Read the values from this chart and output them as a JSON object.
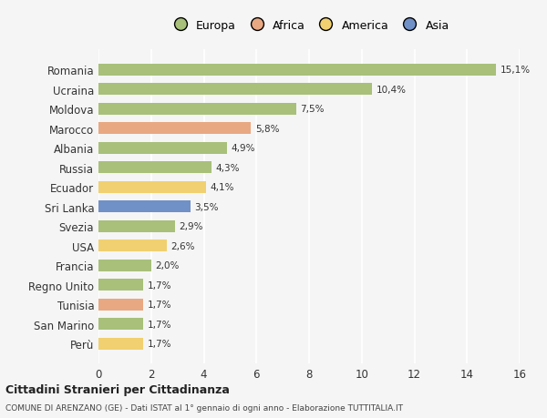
{
  "categories": [
    "Perù",
    "San Marino",
    "Tunisia",
    "Regno Unito",
    "Francia",
    "USA",
    "Svezia",
    "Sri Lanka",
    "Ecuador",
    "Russia",
    "Albania",
    "Marocco",
    "Moldova",
    "Ucraina",
    "Romania"
  ],
  "values": [
    1.7,
    1.7,
    1.7,
    1.7,
    2.0,
    2.6,
    2.9,
    3.5,
    4.1,
    4.3,
    4.9,
    5.8,
    7.5,
    10.4,
    15.1
  ],
  "labels": [
    "1,7%",
    "1,7%",
    "1,7%",
    "1,7%",
    "2,0%",
    "2,6%",
    "2,9%",
    "3,5%",
    "4,1%",
    "4,3%",
    "4,9%",
    "5,8%",
    "7,5%",
    "10,4%",
    "15,1%"
  ],
  "continents": [
    "America",
    "Europa",
    "Africa",
    "Europa",
    "Europa",
    "America",
    "Europa",
    "Asia",
    "America",
    "Europa",
    "Europa",
    "Africa",
    "Europa",
    "Europa",
    "Europa"
  ],
  "bar_colors": [
    "#f0d070",
    "#a8c07a",
    "#e8a882",
    "#a8c07a",
    "#a8c07a",
    "#f0d070",
    "#a8c07a",
    "#7090c8",
    "#f0d070",
    "#a8c07a",
    "#a8c07a",
    "#e8a882",
    "#a8c07a",
    "#a8c07a",
    "#a8c07a"
  ],
  "xlim": [
    0,
    16
  ],
  "xticks": [
    0,
    2,
    4,
    6,
    8,
    10,
    12,
    14,
    16
  ],
  "title": "Cittadini Stranieri per Cittadinanza",
  "subtitle": "COMUNE DI ARENZANO (GE) - Dati ISTAT al 1° gennaio di ogni anno - Elaborazione TUTTITALIA.IT",
  "legend_labels": [
    "Europa",
    "Africa",
    "America",
    "Asia"
  ],
  "legend_colors": [
    "#a8c07a",
    "#e8a882",
    "#f0d070",
    "#7090c8"
  ],
  "bg_color": "#f5f5f5",
  "grid_color": "#ffffff",
  "bar_height": 0.6
}
